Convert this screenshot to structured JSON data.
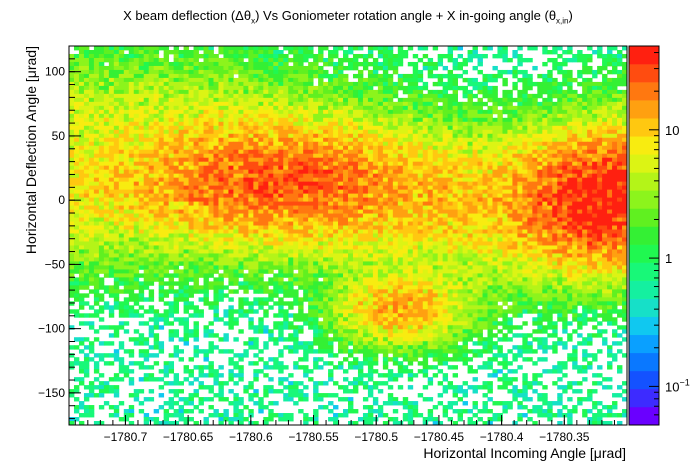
{
  "chart_data": {
    "type": "heatmap",
    "title": {
      "prefix": "X beam deflection (Δθ",
      "sub1": "x",
      "middle": ") Vs Goniometer rotation angle + X in-going angle (θ",
      "sub2": "x,in",
      "suffix": ")"
    },
    "xlabel": "Horizontal Incoming Angle [μrad]",
    "ylabel": "Horizontal Deflection Angle [μrad]",
    "xlim": [
      -1780.745,
      -1780.3
    ],
    "ylim": [
      -175,
      120
    ],
    "x_ticks": [
      {
        "value": -1780.7,
        "label": "−1780.7"
      },
      {
        "value": -1780.65,
        "label": "−1780.65"
      },
      {
        "value": -1780.6,
        "label": "−1780.6"
      },
      {
        "value": -1780.55,
        "label": "−1780.55"
      },
      {
        "value": -1780.5,
        "label": "−1780.5"
      },
      {
        "value": -1780.45,
        "label": "−1780.45"
      },
      {
        "value": -1780.4,
        "label": "−1780.4"
      },
      {
        "value": -1780.35,
        "label": "−1780.35"
      }
    ],
    "y_ticks": [
      {
        "value": 100,
        "label": "100"
      },
      {
        "value": 50,
        "label": "50"
      },
      {
        "value": 0,
        "label": "0"
      },
      {
        "value": -50,
        "label": "−50"
      },
      {
        "value": -100,
        "label": "−100"
      },
      {
        "value": -150,
        "label": "−150"
      }
    ],
    "z_scale": "log",
    "zlim": [
      0.05,
      45
    ],
    "z_ticks": [
      {
        "value": 10,
        "label": "10"
      },
      {
        "value": 1,
        "label": "1"
      },
      {
        "value": 0.1,
        "label": "10",
        "exponent": "−1"
      }
    ],
    "palette": [
      "#6a00ff",
      "#3d2bff",
      "#1452ff",
      "#0a78ff",
      "#0aa0ff",
      "#10c8f0",
      "#16e0c8",
      "#14f0a0",
      "#18f878",
      "#20f850",
      "#34f034",
      "#60f020",
      "#8cf41c",
      "#b4f418",
      "#dcf414",
      "#f8ec10",
      "#ffc810",
      "#ffa010",
      "#ff7810",
      "#ff4c10",
      "#ff2010"
    ],
    "features": [
      {
        "name": "band",
        "x_range": [
          -1780.745,
          -1780.3
        ],
        "y_center": 5,
        "y_width": 35,
        "peak_count": 11
      },
      {
        "name": "hotspot-right",
        "x": -1780.32,
        "y": 0,
        "peak_count": 30
      },
      {
        "name": "hotspot-center",
        "x": -1780.58,
        "y": 15,
        "peak_count": 18
      },
      {
        "name": "lower-branch",
        "x": -1780.48,
        "y": -85,
        "peak_count": 13
      }
    ]
  }
}
